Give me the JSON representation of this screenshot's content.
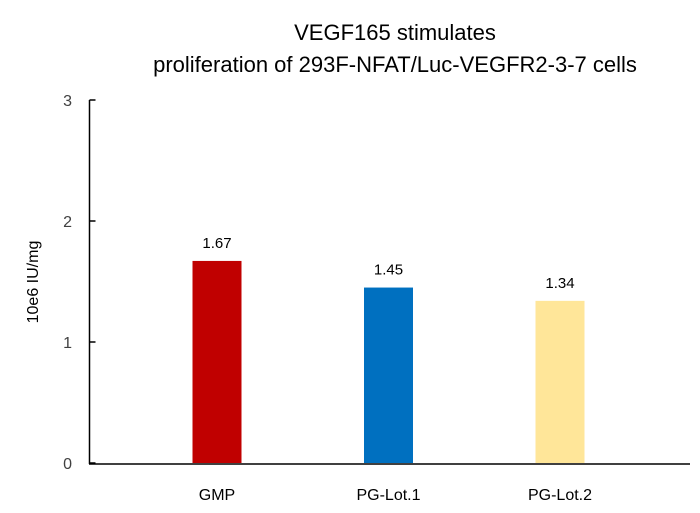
{
  "chart_data": {
    "type": "bar",
    "title": [
      "VEGF165 stimulates",
      "proliferation of 293F-NFAT/Luc-VEGFR2-3-7 cells"
    ],
    "xlabel": "",
    "ylabel": "10e6 IU/mg",
    "ylim": [
      0,
      3
    ],
    "yticks": [
      "0",
      "1",
      "2",
      "3"
    ],
    "grid": false,
    "legend": "none",
    "categories": [
      "GMP",
      "PG-Lot.1",
      "PG-Lot.2"
    ],
    "values": [
      1.67,
      1.45,
      1.34
    ],
    "data_labels": [
      "1.67",
      "1.45",
      "1.34"
    ],
    "colors": [
      "#C00000",
      "#0070C0",
      "#FFE699"
    ]
  }
}
